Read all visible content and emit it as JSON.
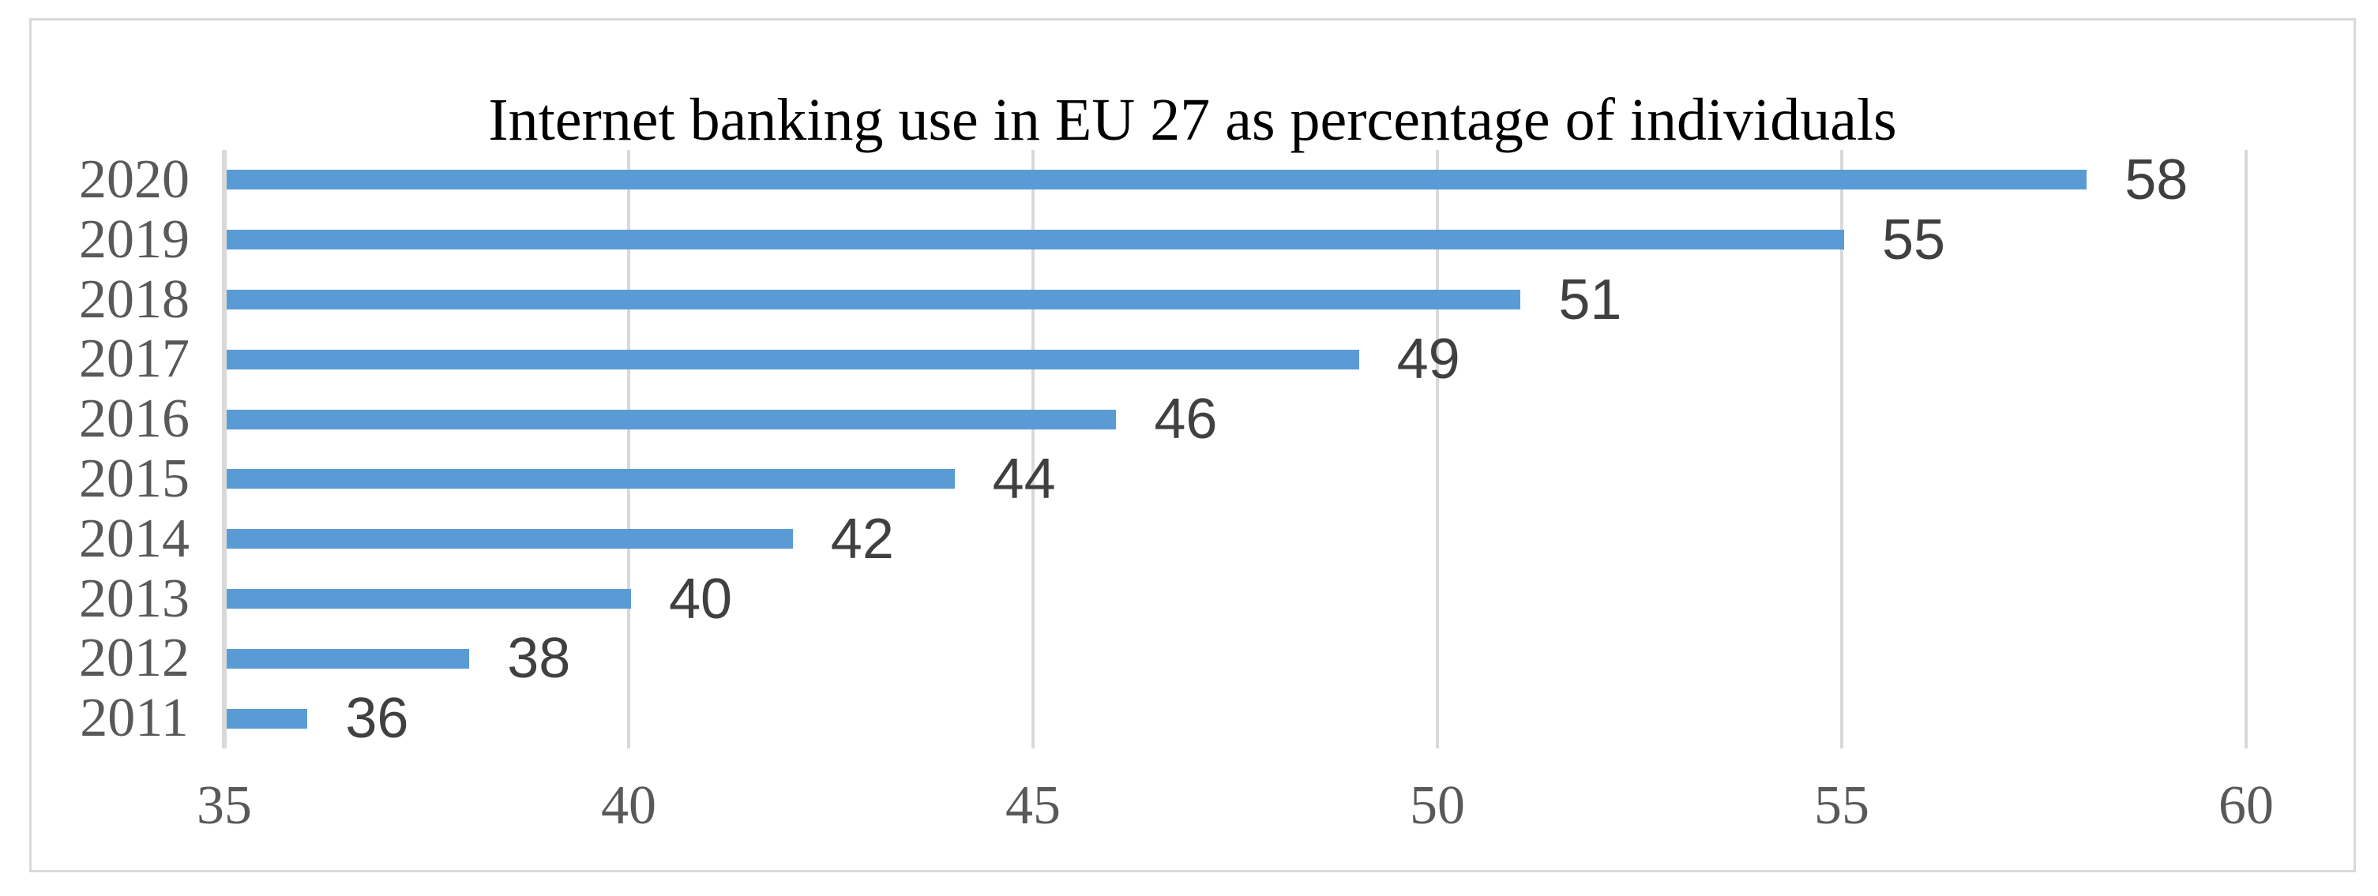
{
  "chart_data": {
    "type": "bar",
    "orientation": "horizontal",
    "title": "Internet banking use in EU 27 as percentage of individuals",
    "categories": [
      "2020",
      "2019",
      "2018",
      "2017",
      "2016",
      "2015",
      "2014",
      "2013",
      "2012",
      "2011"
    ],
    "values": [
      58,
      55,
      51,
      49,
      46,
      44,
      42,
      40,
      38,
      36
    ],
    "data_labels": [
      "58",
      "55",
      "51",
      "49",
      "46",
      "44",
      "42",
      "40",
      "38",
      "36"
    ],
    "xlabel": "",
    "ylabel": "",
    "xlim": [
      35,
      60
    ],
    "x_ticks": [
      35,
      40,
      45,
      50,
      55,
      60
    ],
    "grid": true,
    "legend": "none",
    "colors": {
      "bar": "#5B9BD5",
      "gridline": "#D9D9D9",
      "axis_line": "#D9D9D9",
      "tick_label": "#595959",
      "category_label": "#595959",
      "data_label": "#404040",
      "title": "#000000",
      "frame_border": "#D9D9D9",
      "background": "#FFFFFF"
    }
  }
}
